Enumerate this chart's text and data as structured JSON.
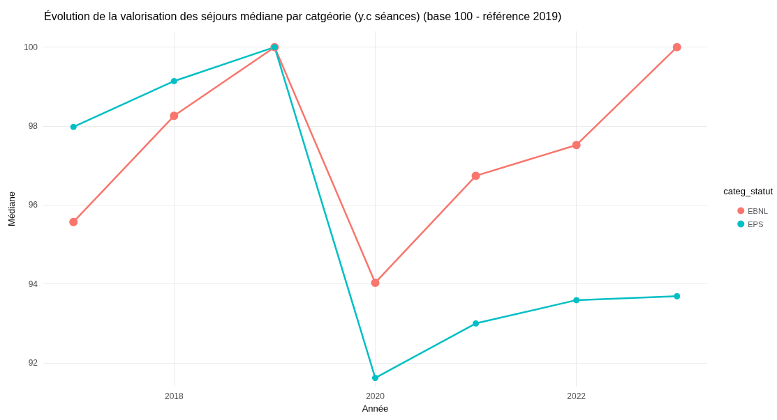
{
  "chart_data": {
    "type": "line",
    "title": "Évolution de la valorisation des séjours médiane par catgéorie (y.c séances) (base 100 - référence 2019)",
    "xlabel": "Année",
    "ylabel": "Médiane",
    "legend_title": "categ_statut",
    "x": [
      2017,
      2018,
      2019,
      2020,
      2021,
      2022,
      2023
    ],
    "series": [
      {
        "name": "EBNL",
        "color": "#f8766d",
        "values": [
          95.57,
          98.26,
          100,
          94.03,
          96.74,
          97.52,
          100
        ]
      },
      {
        "name": "EPS",
        "color": "#00bfc4",
        "values": [
          97.98,
          99.14,
          100,
          91.62,
          93.0,
          93.59,
          93.69
        ]
      }
    ],
    "xlim": [
      2016.7,
      2023.3
    ],
    "xticks": [
      2018,
      2020,
      2022
    ],
    "ylim": [
      91.4,
      100.4
    ],
    "yticks": [
      92,
      94,
      96,
      98,
      100
    ],
    "grid": true,
    "legend": "right",
    "marker": "circle",
    "line_style": "solid"
  }
}
